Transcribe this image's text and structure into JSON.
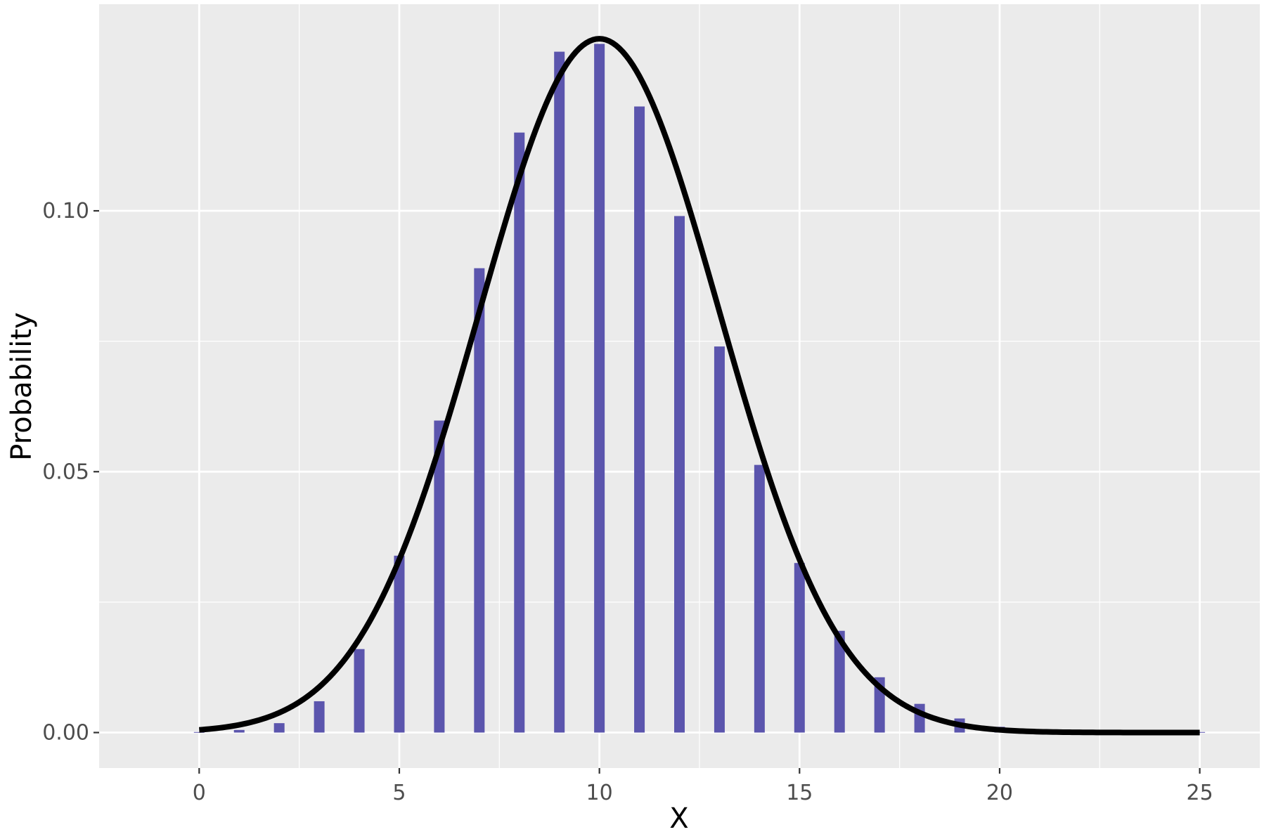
{
  "chart_data": {
    "type": "bar",
    "xlabel": "X",
    "ylabel": "Probability",
    "xlim": [
      -2.5,
      26.5
    ],
    "ylim": [
      -0.0068,
      0.1396
    ],
    "x_ticks": [
      0,
      5,
      10,
      15,
      20,
      25
    ],
    "x_tick_labels": [
      "0",
      "5",
      "10",
      "15",
      "20",
      "25"
    ],
    "y_ticks": [
      0.0,
      0.05,
      0.1
    ],
    "y_tick_labels": [
      "0.00",
      "0.05",
      "0.10"
    ],
    "grid": true,
    "background": "#ebebeb",
    "grid_color": "#ffffff",
    "bar_color": "#5b55ad",
    "curve_color": "#000000",
    "series": [
      {
        "type": "bar",
        "x": [
          0,
          1,
          2,
          3,
          4,
          5,
          6,
          7,
          8,
          9,
          10,
          11,
          12,
          13,
          14,
          15,
          16,
          17,
          18,
          19,
          20,
          21,
          22,
          23,
          24,
          25
        ],
        "values": [
          0.0001,
          0.0005,
          0.0018,
          0.006,
          0.016,
          0.0339,
          0.0598,
          0.089,
          0.115,
          0.1305,
          0.132,
          0.12,
          0.099,
          0.074,
          0.0513,
          0.0325,
          0.0195,
          0.0106,
          0.0055,
          0.0027,
          0.0011,
          0.0005,
          0.0002,
          0.0001,
          0.0001,
          0.0001
        ]
      },
      {
        "type": "line",
        "function": "normal_density",
        "mean": 10,
        "sd": 3,
        "x_range": [
          0,
          25
        ]
      }
    ]
  }
}
